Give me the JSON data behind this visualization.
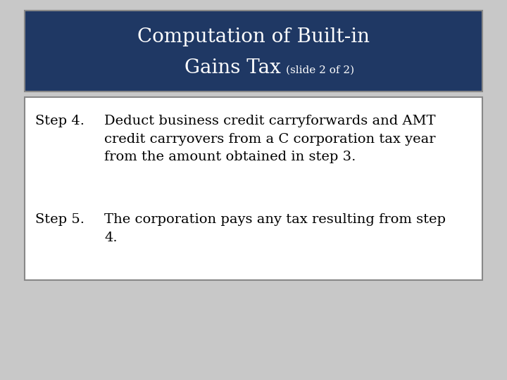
{
  "title_line1": "Computation of Built-in",
  "title_line2": "Gains Tax",
  "title_sub": "(slide 2 of 2)",
  "title_bg_color": "#1F3864",
  "title_text_color": "#FFFFFF",
  "body_bg_color": "#FFFFFF",
  "body_border_color": "#888888",
  "slide_bg_color": "#C8C8C8",
  "step4_label": "Step 4.",
  "step4_text": "Deduct business credit carryforwards and AMT\ncredit carryovers from a C corporation tax year\nfrom the amount obtained in step 3.",
  "step5_label": "Step 5.",
  "step5_text": "The corporation pays any tax resulting from step\n4.",
  "font_family": "serif",
  "title_fontsize": 20,
  "subtitle_fontsize": 11,
  "body_fontsize": 14
}
